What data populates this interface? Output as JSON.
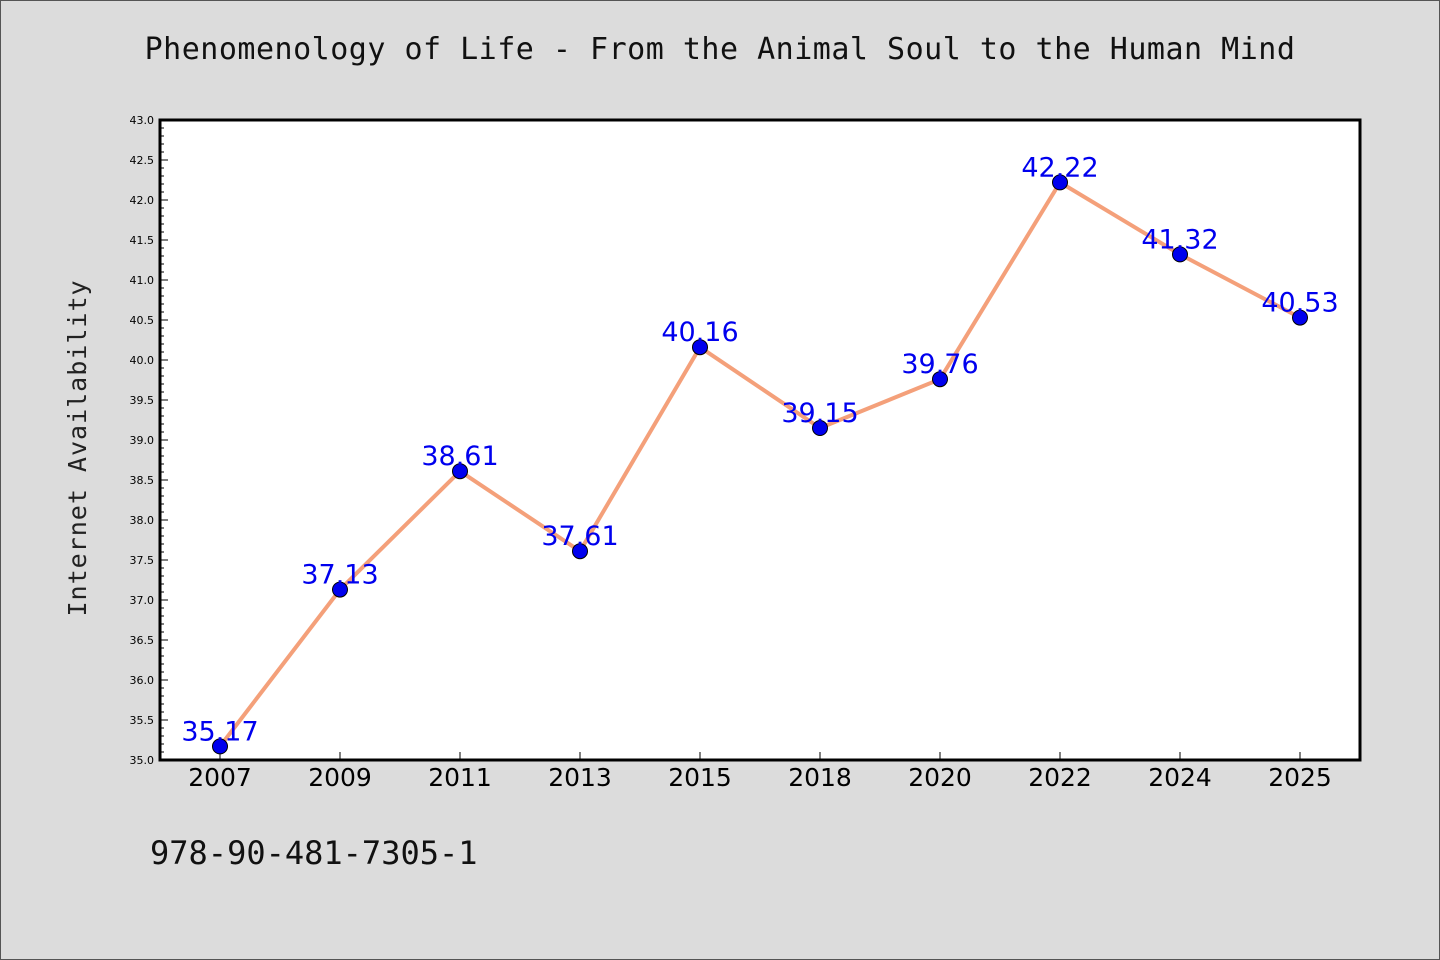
{
  "chart_data": {
    "type": "line",
    "title": "Phenomenology of Life - From the Animal Soul to the Human Mind",
    "ylabel": "Internet Availability",
    "xlabel": "",
    "categories": [
      "2007",
      "2009",
      "2011",
      "2013",
      "2015",
      "2018",
      "2020",
      "2022",
      "2024",
      "2025"
    ],
    "series": [
      {
        "values": [
          35.17,
          37.13,
          38.61,
          37.61,
          40.16,
          39.15,
          39.76,
          42.22,
          41.32,
          40.53
        ],
        "data_labels": [
          "35.17",
          "37.13",
          "38.61",
          "37.61",
          "40.16",
          "39.15",
          "39.76",
          "42.22",
          "41.32",
          "40.53"
        ]
      }
    ],
    "ylim": [
      35.0,
      43.0
    ],
    "yticks": [
      "35.0",
      "35.5",
      "36.0",
      "36.5",
      "37.0",
      "37.5",
      "38.0",
      "38.5",
      "39.0",
      "39.5",
      "40.0",
      "40.5",
      "41.0",
      "41.5",
      "42.0",
      "42.5",
      "43.0"
    ],
    "grid": false,
    "legend": "none",
    "colors": {
      "line": "#f4a07a",
      "marker": "#0000ee",
      "label": "#0000ee",
      "background": "#dcdcdc",
      "plot_background": "#ffffff"
    }
  },
  "footer": {
    "isbn": "978-90-481-7305-1"
  }
}
